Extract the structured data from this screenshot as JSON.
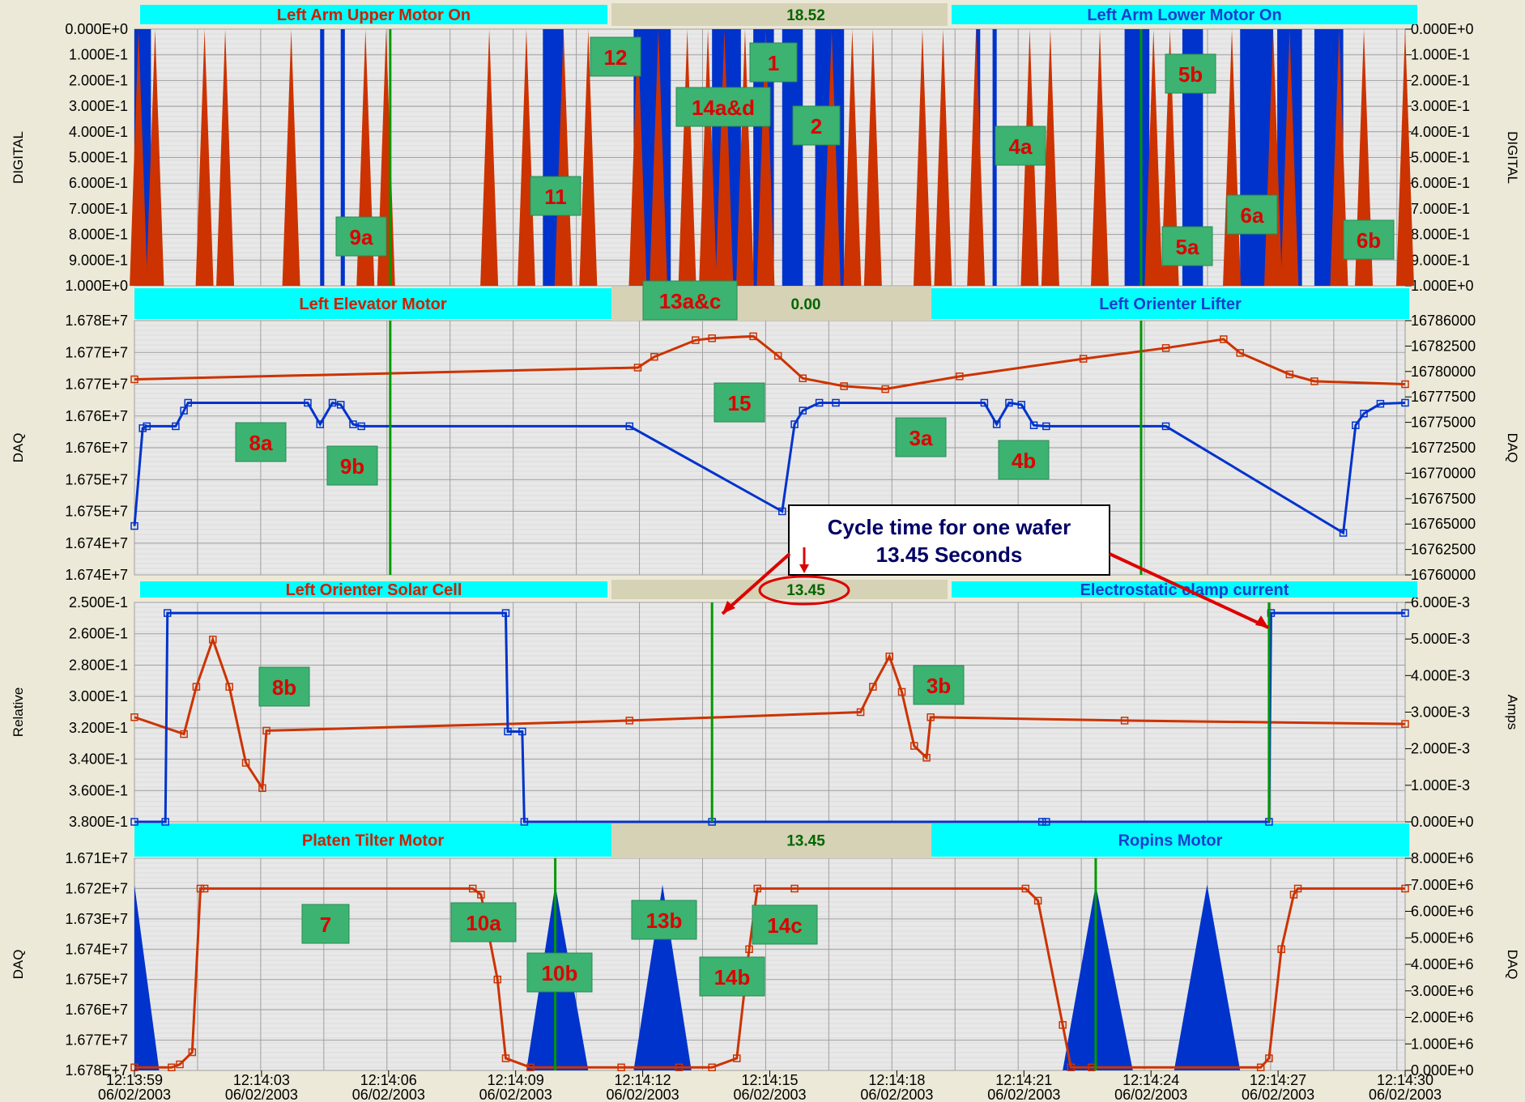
{
  "panels": [
    {
      "id": "p1",
      "left_title": "Left Arm Upper Motor On",
      "left_title_color": "#cc2200",
      "center_value": "18.52",
      "right_title": "Left Arm Lower Motor On",
      "right_title_color": "#1a3fcc",
      "left_axis_label": "DIGITAL",
      "right_axis_label": "DIGITAL",
      "left_ticks": [
        "0.000E+0",
        "1.000E-1",
        "2.000E-1",
        "3.000E-1",
        "4.000E-1",
        "5.000E-1",
        "6.000E-1",
        "7.000E-1",
        "8.000E-1",
        "9.000E-1",
        "1.000E+0"
      ],
      "right_ticks": [
        "0.000E+0",
        "1.000E-1",
        "2.000E-1",
        "3.000E-1",
        "4.000E-1",
        "5.000E-1",
        "6.000E-1",
        "7.000E-1",
        "8.000E-1",
        "9.000E-1",
        "1.000E+0"
      ]
    },
    {
      "id": "p2",
      "left_title": "Left Elevator Motor",
      "left_title_color": "#cc2200",
      "center_value": "0.00",
      "right_title": "Left Orienter Lifter",
      "right_title_color": "#1a3fcc",
      "left_axis_label": "DAQ",
      "right_axis_label": "DAQ",
      "left_ticks": [
        "1.678E+7",
        "1.677E+7",
        "1.677E+7",
        "1.676E+7",
        "1.676E+7",
        "1.675E+7",
        "1.675E+7",
        "1.674E+7",
        "1.674E+7"
      ],
      "right_ticks": [
        "16786000",
        "16782500",
        "16780000",
        "16777500",
        "16775000",
        "16772500",
        "16770000",
        "16767500",
        "16765000",
        "16762500",
        "16760000"
      ]
    },
    {
      "id": "p3",
      "left_title": "Left Orienter Solar Cell",
      "left_title_color": "#cc2200",
      "center_value": "13.45",
      "right_title": "Electrostatic clamp current",
      "right_title_color": "#1a3fcc",
      "left_axis_label": "Relative",
      "right_axis_label": "Amps",
      "left_ticks": [
        "2.500E-1",
        "2.600E-1",
        "2.800E-1",
        "3.000E-1",
        "3.200E-1",
        "3.400E-1",
        "3.600E-1",
        "3.800E-1"
      ],
      "right_ticks": [
        "6.000E-3",
        "5.000E-3",
        "4.000E-3",
        "3.000E-3",
        "2.000E-3",
        "1.000E-3",
        "0.000E+0"
      ]
    },
    {
      "id": "p4",
      "left_title": "Platen Tilter Motor",
      "left_title_color": "#cc2200",
      "center_value": "13.45",
      "right_title": "Ropins Motor",
      "right_title_color": "#1a3fcc",
      "left_axis_label": "DAQ",
      "right_axis_label": "DAQ",
      "left_ticks": [
        "1.671E+7",
        "1.672E+7",
        "1.673E+7",
        "1.674E+7",
        "1.675E+7",
        "1.676E+7",
        "1.677E+7",
        "1.678E+7"
      ],
      "right_ticks": [
        "8.000E+6",
        "7.000E+6",
        "6.000E+6",
        "5.000E+6",
        "4.000E+6",
        "3.000E+6",
        "2.000E+6",
        "1.000E+6",
        "0.000E+0"
      ]
    }
  ],
  "time_ticks": [
    {
      "time": "12:13:59",
      "date": "06/02/2003"
    },
    {
      "time": "12:14:03",
      "date": "06/02/2003"
    },
    {
      "time": "12:14:06",
      "date": "06/02/2003"
    },
    {
      "time": "12:14:09",
      "date": "06/02/2003"
    },
    {
      "time": "12:14:12",
      "date": "06/02/2003"
    },
    {
      "time": "12:14:15",
      "date": "06/02/2003"
    },
    {
      "time": "12:14:18",
      "date": "06/02/2003"
    },
    {
      "time": "12:14:21",
      "date": "06/02/2003"
    },
    {
      "time": "12:14:24",
      "date": "06/02/2003"
    },
    {
      "time": "12:14:27",
      "date": "06/02/2003"
    },
    {
      "time": "12:14:30",
      "date": "06/02/2003"
    }
  ],
  "annotation": {
    "line1": "Cycle time for one wafer",
    "line2": "13.45 Seconds"
  },
  "labels": [
    {
      "text": "12"
    },
    {
      "text": "1"
    },
    {
      "text": "14a&d"
    },
    {
      "text": "2"
    },
    {
      "text": "5b"
    },
    {
      "text": "4a"
    },
    {
      "text": "11"
    },
    {
      "text": "9a"
    },
    {
      "text": "6a"
    },
    {
      "text": "5a"
    },
    {
      "text": "6b"
    },
    {
      "text": "13a&c"
    },
    {
      "text": "15"
    },
    {
      "text": "8a"
    },
    {
      "text": "9b"
    },
    {
      "text": "3a"
    },
    {
      "text": "4b"
    },
    {
      "text": "8b"
    },
    {
      "text": "3b"
    },
    {
      "text": "7"
    },
    {
      "text": "10a"
    },
    {
      "text": "13b"
    },
    {
      "text": "14c"
    },
    {
      "text": "10b"
    },
    {
      "text": "14b"
    }
  ],
  "colors": {
    "red_series": "#cc3300",
    "blue_series": "#0033cc",
    "cursor": "#009900",
    "title_bar": "#00ffff",
    "label_bg": "#3cb371"
  },
  "chart_data": [
    {
      "type": "area",
      "panel": "Digital",
      "series": [
        {
          "name": "Left Arm Upper Motor On",
          "color": "#cc3300",
          "x_seconds": [
            0.1,
            0.5,
            1.7,
            2.2,
            3.8,
            5.6,
            6.1,
            8.6,
            9.5,
            10.4,
            11.0,
            12.2,
            12.7,
            13.4,
            13.9,
            14.3,
            14.8,
            15.3,
            16.9,
            17.4,
            17.9,
            19.1,
            19.6,
            20.4,
            21.7,
            22.2,
            23.4,
            24.7,
            25.1,
            26.6,
            27.6,
            28.0,
            29.2,
            29.8,
            30.8
          ]
        },
        {
          "name": "Left Arm Lower Motor On",
          "color": "#0033cc",
          "on_intervals_seconds": [
            [
              0.0,
              0.4
            ],
            [
              4.5,
              4.6
            ],
            [
              5.0,
              5.1
            ],
            [
              9.9,
              10.4
            ],
            [
              12.1,
              13.0
            ],
            [
              14.0,
              14.7
            ],
            [
              15.0,
              15.5
            ],
            [
              15.7,
              16.2
            ],
            [
              16.5,
              17.2
            ],
            [
              20.4,
              20.5
            ],
            [
              20.8,
              20.9
            ],
            [
              24.0,
              24.6
            ],
            [
              25.4,
              25.9
            ],
            [
              26.8,
              27.6
            ],
            [
              27.7,
              28.3
            ],
            [
              28.6,
              29.3
            ]
          ]
        }
      ],
      "ylim": [
        0,
        1
      ]
    },
    {
      "type": "line",
      "panel": "DAQ",
      "series": [
        {
          "name": "Left Elevator Motor",
          "color": "#cc3300",
          "x": [
            0,
            12.2,
            12.6,
            13.6,
            14.0,
            15.0,
            15.6,
            16.2,
            17.2,
            18.2,
            20.0,
            23.0,
            25.0,
            26.4,
            26.8,
            28.0,
            28.6,
            30.8
          ],
          "y": [
            16780000,
            16781200,
            16782300,
            16784000,
            16784200,
            16784400,
            16782400,
            16780100,
            16779300,
            16779000,
            16780300,
            16782100,
            16783200,
            16784100,
            16782700,
            16780500,
            16779800,
            16779500
          ]
        },
        {
          "name": "Left Orienter Lifter",
          "color": "#0033cc",
          "x": [
            0,
            0.2,
            0.3,
            1.0,
            1.2,
            1.3,
            4.2,
            4.5,
            4.8,
            5.0,
            5.3,
            5.5,
            12.0,
            15.7,
            16.0,
            16.2,
            16.6,
            17.0,
            20.6,
            20.9,
            21.2,
            21.5,
            21.8,
            22.1,
            25.0,
            29.3,
            29.6,
            29.8,
            30.2,
            30.8
          ],
          "y": [
            16765000,
            16775000,
            16775200,
            16775200,
            16776800,
            16777600,
            16777600,
            16775400,
            16777600,
            16777400,
            16775400,
            16775200,
            16775200,
            16766500,
            16775400,
            16776800,
            16777600,
            16777600,
            16777600,
            16775400,
            16777600,
            16777400,
            16775300,
            16775200,
            16775200,
            16764300,
            16775300,
            16776500,
            16777500,
            16777600
          ]
        }
      ]
    },
    {
      "type": "line",
      "panel": "Relative / Amps",
      "series": [
        {
          "name": "Left Orienter Solar Cell",
          "color": "#cc3300",
          "x": [
            0,
            1.2,
            1.5,
            1.9,
            2.3,
            2.7,
            3.1,
            3.2,
            12.0,
            17.6,
            17.9,
            18.3,
            18.6,
            18.9,
            19.2,
            19.3,
            24.0,
            30.8
          ],
          "y": [
            0.318,
            0.328,
            0.3,
            0.272,
            0.3,
            0.345,
            0.36,
            0.326,
            0.32,
            0.315,
            0.3,
            0.282,
            0.303,
            0.335,
            0.342,
            0.318,
            0.32,
            0.322
          ]
        },
        {
          "name": "Electrostatic clamp current",
          "color": "#0033cc",
          "x": [
            0,
            0.75,
            0.8,
            9.0,
            9.05,
            9.4,
            9.45,
            14.0,
            22.0,
            22.1,
            27.5,
            27.55,
            30.8
          ],
          "y": [
            0,
            0,
            0.00571,
            0.00571,
            0.00247,
            0.00247,
            0,
            0,
            0,
            0,
            0,
            0.00571,
            0.00571
          ]
        }
      ]
    },
    {
      "type": "line",
      "panel": "DAQ",
      "series": [
        {
          "name": "Platen Tilter Motor",
          "color": "#cc3300",
          "x": [
            0,
            0.9,
            1.1,
            1.4,
            1.6,
            1.7,
            8.2,
            8.4,
            8.8,
            9.0,
            9.6,
            11.8,
            13.2,
            14.0,
            14.6,
            14.9,
            15.1,
            16.0,
            21.6,
            21.9,
            22.5,
            22.7,
            23.2,
            27.3,
            27.5,
            27.8,
            28.1,
            28.2,
            30.8
          ],
          "y": [
            16779000,
            16779000,
            16778000,
            16774000,
            16720000,
            16720000,
            16720000,
            16722000,
            16750000,
            16776000,
            16779000,
            16779000,
            16779000,
            16779000,
            16776000,
            16740000,
            16720000,
            16720000,
            16720000,
            16724000,
            16765000,
            16779000,
            16779000,
            16779000,
            16776000,
            16740000,
            16722000,
            16720000,
            16720000
          ]
        },
        {
          "name": "Ropins Motor",
          "color": "#0033cc",
          "triangles_seconds": [
            [
              0.0,
              0.0,
              0.6
            ],
            [
              9.5,
              10.2,
              11.0
            ],
            [
              12.1,
              12.8,
              13.5
            ],
            [
              22.5,
              23.3,
              24.2
            ],
            [
              25.2,
              26.0,
              26.8
            ]
          ],
          "ylim": [
            0,
            8000000
          ],
          "peak": 7000000
        }
      ]
    }
  ]
}
